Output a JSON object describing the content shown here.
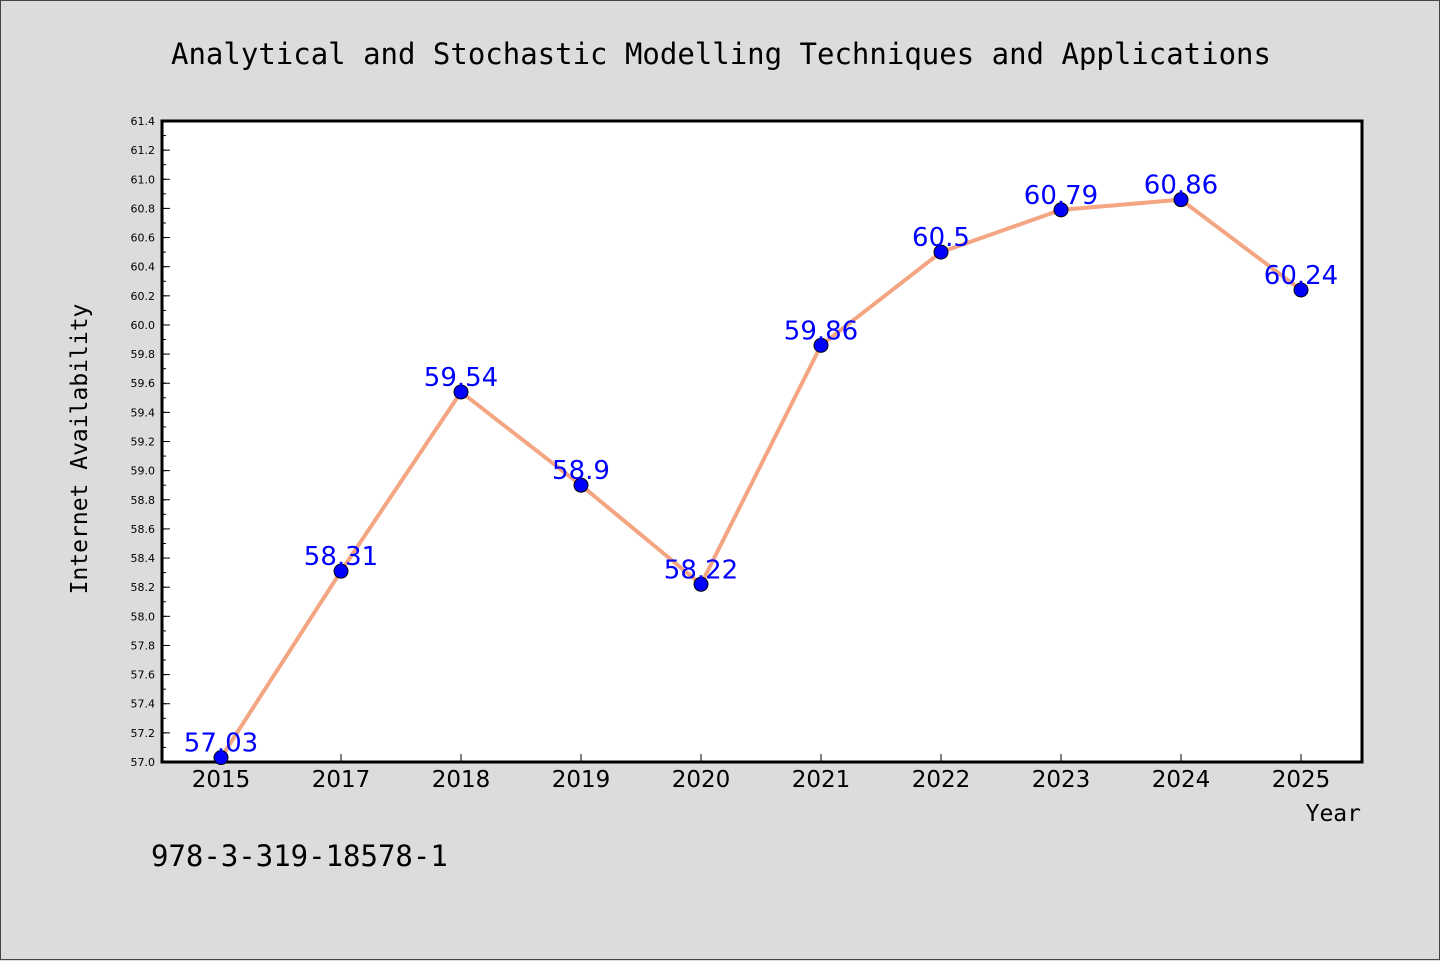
{
  "chart_data": {
    "type": "line",
    "title": "Analytical and Stochastic Modelling Techniques and Applications",
    "xlabel": "Year",
    "ylabel": "Internet Availability",
    "categories": [
      "2015",
      "2017",
      "2018",
      "2019",
      "2020",
      "2021",
      "2022",
      "2023",
      "2024",
      "2025"
    ],
    "values": [
      57.03,
      58.31,
      59.54,
      58.9,
      58.22,
      59.86,
      60.5,
      60.79,
      60.86,
      60.24
    ],
    "value_labels": [
      "57.03",
      "58.31",
      "59.54",
      "58.9",
      "58.22",
      "59.86",
      "60.5",
      "60.79",
      "60.86",
      "60.24"
    ],
    "ylim": [
      57.0,
      61.4
    ],
    "yticks": [
      "57.0",
      "57.2",
      "57.4",
      "57.6",
      "57.8",
      "58.0",
      "58.2",
      "58.4",
      "58.6",
      "58.8",
      "59.0",
      "59.2",
      "59.4",
      "59.6",
      "59.8",
      "60.0",
      "60.2",
      "60.4",
      "60.6",
      "60.8",
      "61.0",
      "61.2",
      "61.4"
    ],
    "grid": false,
    "line_color": "#f4a582",
    "marker_color": "#0000ff",
    "label_color": "#0000ff",
    "footer": "978-3-319-18578-1"
  }
}
